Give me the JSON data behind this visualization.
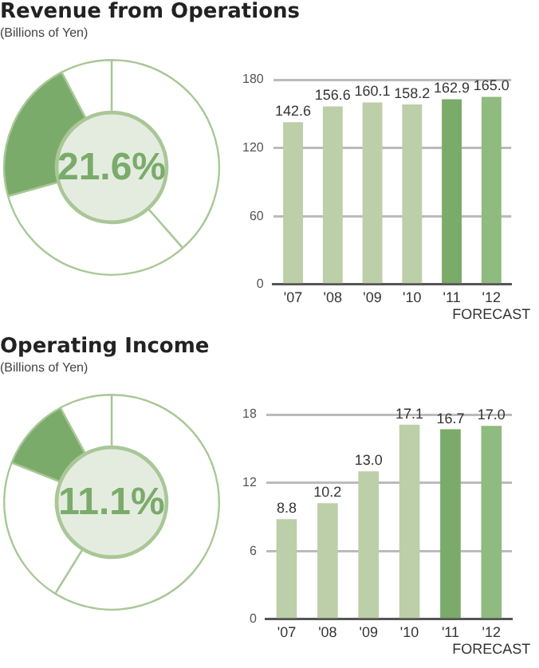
{
  "chart_data": [
    {
      "type": "donut",
      "title": "Revenue from Operations",
      "subtitle": "(Billions of Yen)",
      "categories": [
        null,
        null,
        null,
        null
      ],
      "values": [
        38.5,
        32.2,
        21.6,
        7.7
      ],
      "colors": [
        "#ffffff",
        "#ffffff",
        "#7aab6a",
        "#ffffff"
      ],
      "annotations": [
        "21.6%"
      ]
    },
    {
      "type": "bar",
      "categories": [
        "'07",
        "'08",
        "'09",
        "'10",
        "'11",
        "'12\nFORECAST"
      ],
      "values": [
        142.6,
        156.6,
        160.1,
        158.2,
        162.9,
        165.0
      ],
      "value_labels": [
        "142.6",
        "156.6",
        "160.1",
        "158.2",
        "162.9",
        "165.0"
      ],
      "colors": [
        "#bccfa8",
        "#bccfa8",
        "#bccfa8",
        "#bccfa8",
        "#7aab6a",
        "#8fbb7e"
      ],
      "ylim": [
        0,
        180
      ],
      "yticks": [
        0,
        60,
        120,
        180
      ],
      "grid": "y"
    },
    {
      "type": "donut",
      "title": "Operating Income",
      "subtitle": "(Billions of Yen)",
      "categories": [
        null,
        null,
        null,
        null
      ],
      "values": [
        58.8,
        22.2,
        11.1,
        7.9
      ],
      "colors": [
        "#ffffff",
        "#ffffff",
        "#7aab6a",
        "#ffffff"
      ],
      "annotations": [
        "11.1%"
      ]
    },
    {
      "type": "bar",
      "categories": [
        "'07",
        "'08",
        "'09",
        "'10",
        "'11",
        "'12\nFORECAST"
      ],
      "values": [
        8.8,
        10.2,
        13.0,
        17.1,
        16.7,
        17.0
      ],
      "value_labels": [
        "8.8",
        "10.2",
        "13.0",
        "17.1",
        "16.7",
        "17.0"
      ],
      "colors": [
        "#bccfa8",
        "#bccfa8",
        "#bccfa8",
        "#bccfa8",
        "#7aab6a",
        "#8fbb7e"
      ],
      "ylim": [
        0,
        18
      ],
      "yticks": [
        0,
        6,
        12,
        18
      ],
      "grid": "y"
    }
  ]
}
